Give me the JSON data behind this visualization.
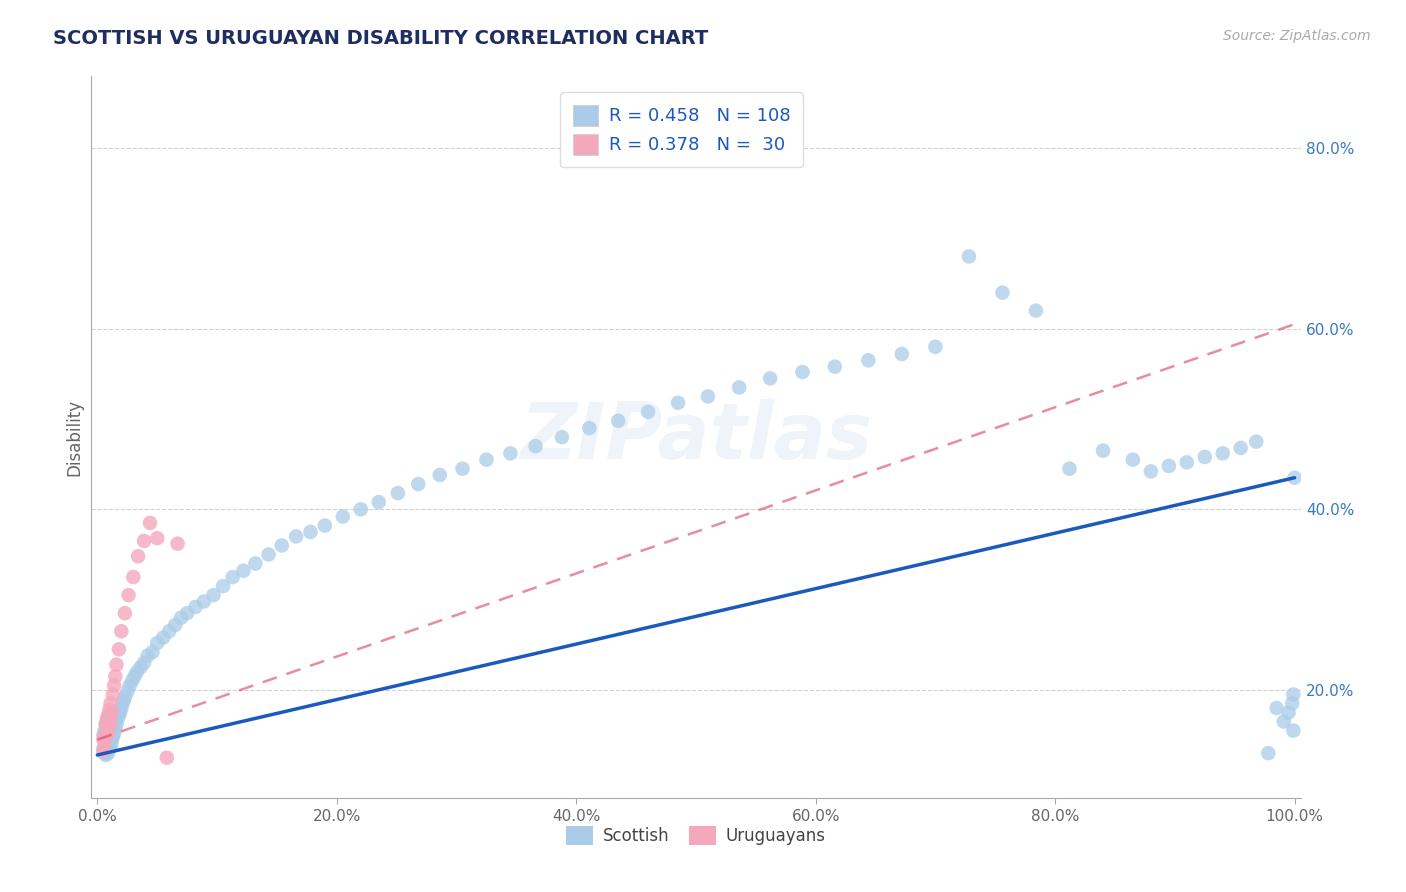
{
  "title": "SCOTTISH VS URUGUAYAN DISABILITY CORRELATION CHART",
  "source": "Source: ZipAtlas.com",
  "ylabel": "Disability",
  "xlim": [
    -0.005,
    1.005
  ],
  "ylim": [
    0.08,
    0.88
  ],
  "xticks": [
    0.0,
    0.2,
    0.4,
    0.6,
    0.8,
    1.0
  ],
  "xticklabels": [
    "0.0%",
    "20.0%",
    "40.0%",
    "60.0%",
    "80.0%",
    "100.0%"
  ],
  "yticks": [
    0.2,
    0.4,
    0.6,
    0.8
  ],
  "yticklabels": [
    "20.0%",
    "40.0%",
    "60.0%",
    "80.0%"
  ],
  "R_scottish": 0.458,
  "N_scottish": 108,
  "R_uruguayan": 0.378,
  "N_uruguayan": 30,
  "scottish_color": "#aacce8",
  "uruguayan_color": "#f4a8bc",
  "scottish_line_color": "#1a5abf",
  "uruguayan_line_color": "#d94060",
  "background_color": "#ffffff",
  "grid_color": "#cccccc",
  "title_color": "#1e2e60",
  "legend_text_color": "#1a5abf",
  "axis_color": "#aaaaaa",
  "tick_color": "#666666",
  "right_tick_color": "#3a7abf",
  "watermark_text": "ZIPatlas",
  "scottish_x": [
    0.005,
    0.005,
    0.006,
    0.006,
    0.007,
    0.007,
    0.007,
    0.008,
    0.008,
    0.008,
    0.009,
    0.009,
    0.009,
    0.01,
    0.01,
    0.01,
    0.01,
    0.011,
    0.011,
    0.011,
    0.012,
    0.012,
    0.013,
    0.013,
    0.014,
    0.014,
    0.015,
    0.015,
    0.016,
    0.017,
    0.018,
    0.018,
    0.019,
    0.02,
    0.021,
    0.022,
    0.023,
    0.025,
    0.027,
    0.029,
    0.031,
    0.033,
    0.036,
    0.039,
    0.042,
    0.046,
    0.05,
    0.055,
    0.06,
    0.065,
    0.07,
    0.075,
    0.082,
    0.089,
    0.097,
    0.105,
    0.113,
    0.122,
    0.132,
    0.143,
    0.154,
    0.166,
    0.178,
    0.19,
    0.205,
    0.22,
    0.235,
    0.251,
    0.268,
    0.286,
    0.305,
    0.325,
    0.345,
    0.366,
    0.388,
    0.411,
    0.435,
    0.46,
    0.485,
    0.51,
    0.536,
    0.562,
    0.589,
    0.616,
    0.644,
    0.672,
    0.7,
    0.728,
    0.756,
    0.784,
    0.812,
    0.84,
    0.865,
    0.88,
    0.895,
    0.91,
    0.925,
    0.94,
    0.955,
    0.968,
    0.978,
    0.985,
    0.991,
    0.995,
    0.998,
    0.999,
    0.999,
    1.0
  ],
  "scottish_y": [
    0.135,
    0.15,
    0.13,
    0.155,
    0.128,
    0.145,
    0.162,
    0.132,
    0.148,
    0.165,
    0.13,
    0.152,
    0.168,
    0.135,
    0.147,
    0.158,
    0.172,
    0.138,
    0.15,
    0.163,
    0.142,
    0.155,
    0.148,
    0.162,
    0.152,
    0.168,
    0.158,
    0.172,
    0.162,
    0.168,
    0.172,
    0.178,
    0.175,
    0.18,
    0.185,
    0.188,
    0.192,
    0.198,
    0.205,
    0.21,
    0.215,
    0.22,
    0.225,
    0.23,
    0.238,
    0.242,
    0.252,
    0.258,
    0.265,
    0.272,
    0.28,
    0.285,
    0.292,
    0.298,
    0.305,
    0.315,
    0.325,
    0.332,
    0.34,
    0.35,
    0.36,
    0.37,
    0.375,
    0.382,
    0.392,
    0.4,
    0.408,
    0.418,
    0.428,
    0.438,
    0.445,
    0.455,
    0.462,
    0.47,
    0.48,
    0.49,
    0.498,
    0.508,
    0.518,
    0.525,
    0.535,
    0.545,
    0.552,
    0.558,
    0.565,
    0.572,
    0.58,
    0.68,
    0.64,
    0.62,
    0.445,
    0.465,
    0.455,
    0.442,
    0.448,
    0.452,
    0.458,
    0.462,
    0.468,
    0.475,
    0.13,
    0.18,
    0.165,
    0.175,
    0.185,
    0.155,
    0.195,
    0.435
  ],
  "uruguayan_x": [
    0.005,
    0.005,
    0.006,
    0.006,
    0.007,
    0.007,
    0.008,
    0.008,
    0.009,
    0.009,
    0.01,
    0.01,
    0.011,
    0.011,
    0.012,
    0.013,
    0.014,
    0.015,
    0.016,
    0.018,
    0.02,
    0.023,
    0.026,
    0.03,
    0.034,
    0.039,
    0.044,
    0.05,
    0.058,
    0.067
  ],
  "uruguayan_y": [
    0.145,
    0.132,
    0.15,
    0.138,
    0.148,
    0.162,
    0.155,
    0.168,
    0.152,
    0.172,
    0.158,
    0.178,
    0.165,
    0.185,
    0.175,
    0.195,
    0.205,
    0.215,
    0.228,
    0.245,
    0.265,
    0.285,
    0.305,
    0.325,
    0.348,
    0.365,
    0.385,
    0.368,
    0.125,
    0.362
  ],
  "scottish_line_x0": 0.0,
  "scottish_line_y0": 0.128,
  "scottish_line_x1": 1.0,
  "scottish_line_y1": 0.435,
  "uruguayan_line_x0": 0.0,
  "uruguayan_line_y0": 0.145,
  "uruguayan_line_x1": 1.0,
  "uruguayan_line_y1": 0.605
}
